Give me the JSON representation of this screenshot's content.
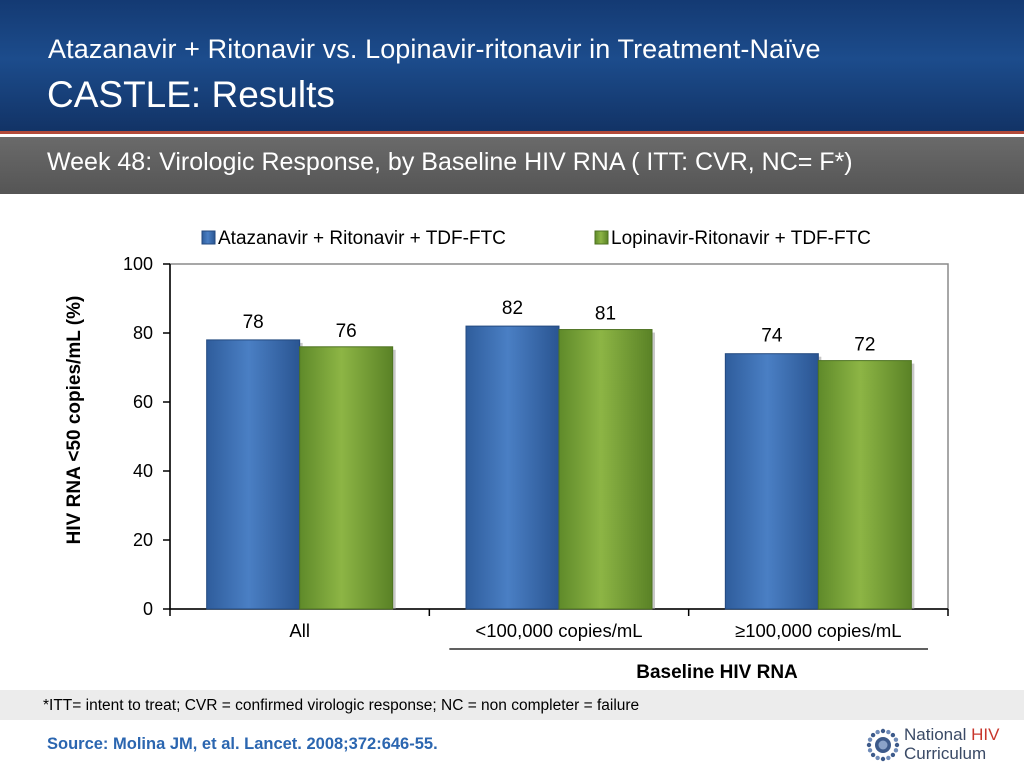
{
  "header": {
    "title_line1": "Atazanavir + Ritonavir vs. Lopinavir-ritonavir in Treatment-Naïve",
    "title_line2": "CASTLE: Results",
    "background_color": "#1c4c8c"
  },
  "subheader": {
    "text": "Week 48: Virologic Response, by Baseline HIV RNA ( ITT: CVR, NC= F*)"
  },
  "chart_data": {
    "type": "bar",
    "title": "",
    "categories": [
      "All",
      "<100,000 copies/mL",
      "≥100,000 copies/mL"
    ],
    "series": [
      {
        "name": "Atazanavir + Ritonavir + TDF-FTC",
        "values": [
          78,
          82,
          74
        ],
        "color": "#3b6db0"
      },
      {
        "name": "Lopinavir-Ritonavir + TDF-FTC",
        "values": [
          76,
          81,
          72
        ],
        "color": "#79a23a"
      }
    ],
    "xlabel": "Baseline HIV RNA",
    "ylabel": "HIV RNA <50 copies/mL (%)",
    "ylim": [
      0,
      100
    ],
    "yticks": [
      0,
      20,
      40,
      60,
      80,
      100
    ],
    "grid": false,
    "legend_position": "top"
  },
  "footnote": {
    "text": "*ITT= intent to treat; CVR = confirmed virologic response; NC = non completer = failure"
  },
  "source": {
    "text": "Source: Molina JM, et al. Lancet. 2008;372:646-55."
  },
  "logo": {
    "word1": "National",
    "word2": "HIV",
    "word3": "Curriculum",
    "icon": "starburst-logo-icon"
  }
}
